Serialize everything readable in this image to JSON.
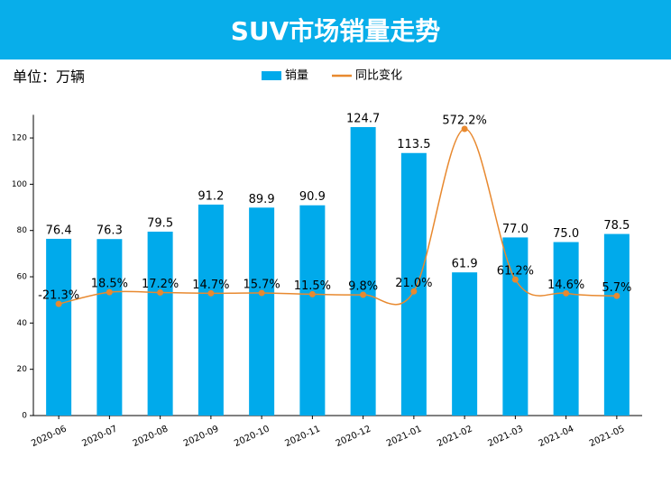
{
  "chart_data": {
    "type": "bar",
    "title": "SUV市场销量走势",
    "unit_label": "单位：万辆",
    "categories": [
      "2020-06",
      "2020-07",
      "2020-08",
      "2020-09",
      "2020-10",
      "2020-11",
      "2020-12",
      "2021-01",
      "2021-02",
      "2021-03",
      "2021-04",
      "2021-05"
    ],
    "series": [
      {
        "name": "销量",
        "type": "bar",
        "color": "#00aaeb",
        "values": [
          76.4,
          76.3,
          79.5,
          91.2,
          89.9,
          90.9,
          124.7,
          113.5,
          61.9,
          77.0,
          75.0,
          78.5
        ],
        "value_labels": [
          "76.4",
          "76.3",
          "79.5",
          "91.2",
          "89.9",
          "90.9",
          "124.7",
          "113.5",
          "61.9",
          "77.0",
          "75.0",
          "78.5"
        ]
      },
      {
        "name": "同比变化",
        "type": "line",
        "axis": "y2",
        "color": "#e8892f",
        "values": [
          -21.3,
          18.5,
          17.2,
          14.7,
          15.7,
          11.5,
          9.8,
          21.0,
          572.2,
          61.2,
          14.6,
          5.7
        ],
        "value_labels": [
          "-21.3%",
          "18.5%",
          "17.2%",
          "14.7%",
          "15.7%",
          "11.5%",
          "9.8%",
          "21.0%",
          "572.2%",
          "61.2%",
          "14.6%",
          "5.7%"
        ]
      }
    ],
    "ylim": [
      0,
      130
    ],
    "yticks": [
      0,
      20,
      40,
      60,
      80,
      100,
      120
    ],
    "y2lim": [
      -400,
      620
    ]
  }
}
